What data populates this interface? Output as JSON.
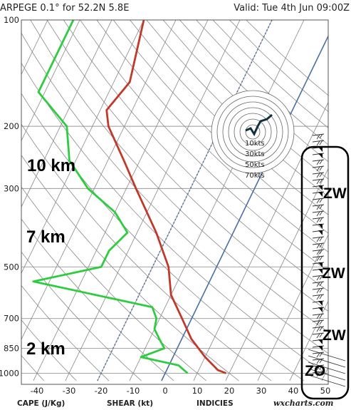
{
  "header": {
    "left": "ARPEGE 0.1° for 52.2N 5.8E",
    "right": "Valid: Tue 4th Jun 09:00Z"
  },
  "footer": {
    "cape": "CAPE (J/Kg)",
    "shear": "SHEAR (kt)",
    "indicies": "INDICIES",
    "brand": "wxcharts.com"
  },
  "annotations": {
    "km10": "10 km",
    "km7": "7 km",
    "km2": "2 km",
    "zw1": "ZW",
    "zw2": "ZW",
    "zw3": "ZW",
    "zo": "ZO"
  },
  "hodograph_labels": [
    "10kts",
    "30kts",
    "50kts",
    "70kts"
  ],
  "chart_data": {
    "type": "line",
    "title": "ARPEGE 0.1° for 52.2N 5.8E",
    "subtitle": "Valid: Tue 4th Jun 09:00Z",
    "x_axis": {
      "ticks": [
        -40,
        -30,
        -20,
        -10,
        0,
        10,
        20,
        30,
        40,
        50
      ],
      "range": [
        -45,
        50
      ]
    },
    "y_axis": {
      "scale": "log",
      "ticks": [
        100,
        200,
        300,
        500,
        700,
        850,
        1000
      ],
      "range": [
        1050,
        100
      ]
    },
    "series": [
      {
        "color": "#c0392b",
        "points": [
          [
            100,
            -60
          ],
          [
            150,
            -55
          ],
          [
            180,
            -58
          ],
          [
            200,
            -55
          ],
          [
            250,
            -45
          ],
          [
            300,
            -37
          ],
          [
            400,
            -24
          ],
          [
            500,
            -15
          ],
          [
            600,
            -10
          ],
          [
            700,
            -3
          ],
          [
            800,
            3
          ],
          [
            900,
            10
          ],
          [
            980,
            16
          ],
          [
            1000,
            19
          ]
        ]
      },
      {
        "color": "#2ecc40",
        "points": [
          [
            100,
            -82
          ],
          [
            160,
            -82
          ],
          [
            200,
            -68
          ],
          [
            250,
            -62
          ],
          [
            300,
            -52
          ],
          [
            350,
            -40
          ],
          [
            400,
            -33
          ],
          [
            450,
            -36
          ],
          [
            500,
            -36
          ],
          [
            550,
            -55
          ],
          [
            650,
            -14
          ],
          [
            700,
            -11
          ],
          [
            750,
            -10
          ],
          [
            800,
            -7
          ],
          [
            850,
            -4
          ],
          [
            900,
            -10
          ],
          [
            950,
            3
          ],
          [
            1000,
            7
          ]
        ]
      }
    ]
  }
}
